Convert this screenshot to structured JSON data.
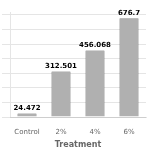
{
  "chart_data": {
    "type": "bar",
    "categories": [
      "Control",
      "2%",
      "4%",
      "6%"
    ],
    "values": [
      24.472,
      312.501,
      456.068,
      676.7
    ],
    "color": "#b0b0b0",
    "xlabel": "Treatment",
    "ylim": [
      0,
      720
    ],
    "yticks": [
      0,
      100,
      200,
      300,
      400,
      500,
      600,
      700
    ],
    "grid": true,
    "data_labels": true,
    "tick_labels": "x"
  }
}
